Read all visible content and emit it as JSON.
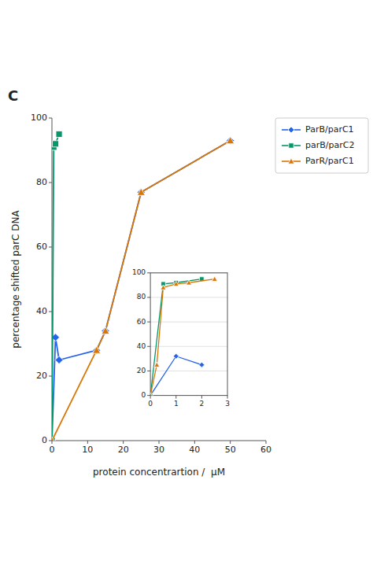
{
  "chart_data": [
    {
      "type": "line",
      "title": "C",
      "x_label": "protein concentrartion /  μM",
      "y_label": "percentage shifted parC DNA",
      "series": [
        {
          "name": "ParB/parC1",
          "marker": "diamond",
          "x": [
            0,
            1,
            2,
            12.5,
            15,
            25,
            50
          ],
          "values": [
            0,
            32,
            25,
            28,
            34,
            77,
            93
          ]
        },
        {
          "name": "parB/parC2",
          "marker": "square",
          "x": [
            0,
            0.5,
            1,
            2
          ],
          "values": [
            0,
            91,
            92,
            95
          ]
        },
        {
          "name": "ParR/parC1",
          "marker": "triangle",
          "x": [
            0,
            12.5,
            15,
            25,
            50
          ],
          "values": [
            0,
            28,
            34,
            77,
            93
          ]
        }
      ],
      "xlim": [
        0,
        60
      ],
      "xticks": [
        0,
        10,
        20,
        30,
        40,
        50,
        60
      ],
      "ylim": [
        0,
        100
      ],
      "yticks": [
        0,
        20,
        40,
        60,
        80,
        100
      ],
      "legend": "right"
    },
    {
      "type": "line",
      "series": [
        {
          "marker": "diamond",
          "x": [
            0,
            1,
            2
          ],
          "values": [
            0,
            32,
            25
          ]
        },
        {
          "marker": "square",
          "x": [
            0,
            0.5,
            1,
            2
          ],
          "values": [
            0,
            91,
            92,
            95
          ]
        },
        {
          "marker": "triangle",
          "x": [
            0,
            0.25,
            0.5,
            1,
            1.5,
            2.5
          ],
          "values": [
            0,
            25,
            88,
            91,
            92,
            95
          ]
        }
      ],
      "xlim": [
        0,
        3
      ],
      "xticks": [
        0,
        1,
        2,
        3
      ],
      "ylim": [
        0,
        100
      ],
      "yticks": [
        0,
        20,
        40,
        60,
        80,
        100
      ],
      "grid": "y"
    }
  ]
}
